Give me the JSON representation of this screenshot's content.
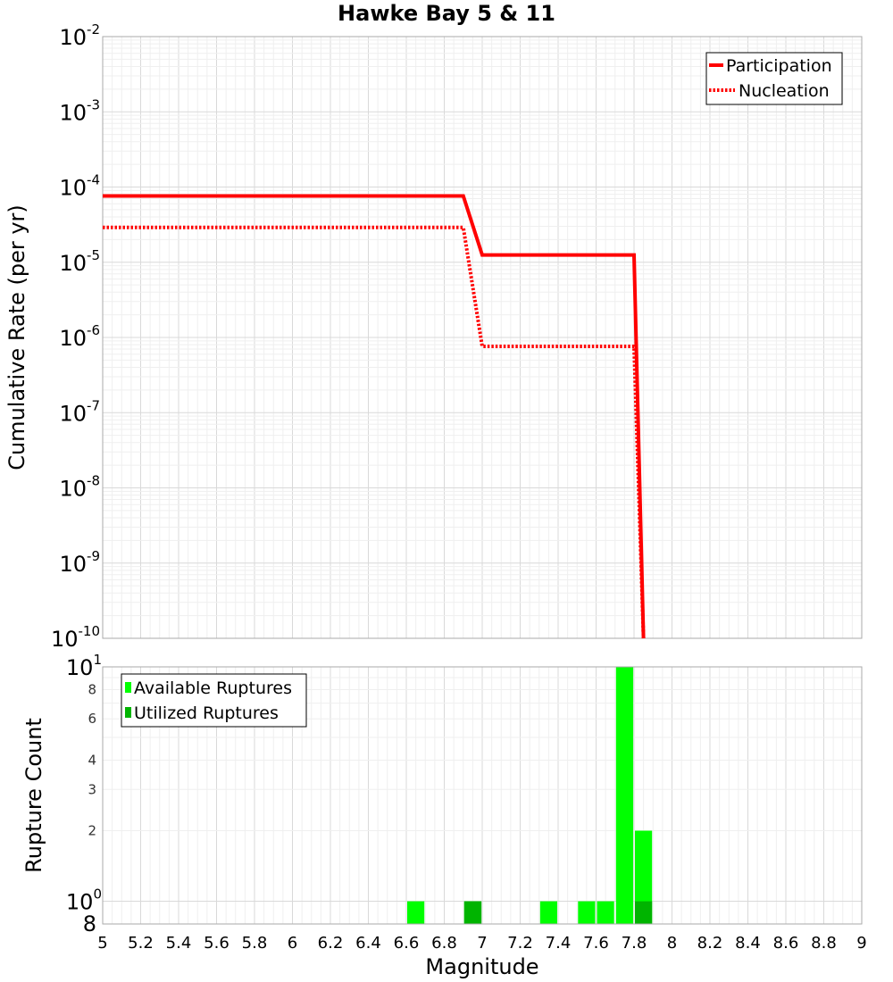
{
  "chart_data": [
    {
      "type": "line",
      "title": "Hawke Bay 5 & 11",
      "xlabel": "",
      "ylabel": "Cumulative Rate (per yr)",
      "xlim": [
        5,
        9
      ],
      "ylim": [
        1e-10,
        0.01
      ],
      "yscale": "log",
      "grid": true,
      "legend_position": "top-right",
      "y_tick_exponents": [
        "-2",
        "-3",
        "-4",
        "-5",
        "-6",
        "-7",
        "-8",
        "-9",
        "-10"
      ],
      "series": [
        {
          "name": "Participation",
          "style": "solid",
          "color": "#ff0000",
          "x": [
            5.0,
            6.9,
            7.0,
            7.8,
            7.85
          ],
          "y": [
            7.6e-05,
            7.6e-05,
            1.25e-05,
            1.25e-05,
            1e-10
          ]
        },
        {
          "name": "Nucleation",
          "style": "dotted",
          "color": "#ff0000",
          "x": [
            5.0,
            6.9,
            7.0,
            7.8,
            7.85
          ],
          "y": [
            2.9e-05,
            2.9e-05,
            7.6e-07,
            7.6e-07,
            1e-10
          ]
        }
      ]
    },
    {
      "type": "bar",
      "title": "",
      "xlabel": "Magnitude",
      "ylabel": "Rupture Count",
      "xlim": [
        5,
        9
      ],
      "ylim": [
        0.8,
        10
      ],
      "yscale": "log",
      "grid": true,
      "legend_position": "top-left",
      "x_ticks": [
        "5",
        "5.2",
        "5.4",
        "5.6",
        "5.8",
        "6",
        "6.2",
        "6.4",
        "6.6",
        "6.8",
        "7",
        "7.2",
        "7.4",
        "7.6",
        "7.8",
        "8",
        "8.2",
        "8.4",
        "8.6",
        "8.8",
        "9"
      ],
      "y_major_ticks": [
        {
          "value": 1,
          "base": "10",
          "exp": "0"
        },
        {
          "value": 10,
          "base": "10",
          "exp": "1"
        }
      ],
      "y_minor_ticks": [
        {
          "value": 2,
          "label": "2"
        },
        {
          "value": 3,
          "label": "3"
        },
        {
          "value": 4,
          "label": "4"
        },
        {
          "value": 6,
          "label": "6"
        },
        {
          "value": 8,
          "label": "8"
        }
      ],
      "y_bottom_label": "8",
      "bin_width": 0.1,
      "series": [
        {
          "name": "Available Ruptures",
          "color": "#00ff00",
          "bins": [
            {
              "x": 6.65,
              "value": 1
            },
            {
              "x": 6.95,
              "value": 1
            },
            {
              "x": 7.35,
              "value": 1
            },
            {
              "x": 7.55,
              "value": 1
            },
            {
              "x": 7.65,
              "value": 1
            },
            {
              "x": 7.75,
              "value": 10
            },
            {
              "x": 7.85,
              "value": 2
            }
          ]
        },
        {
          "name": "Utilized Ruptures",
          "color": "#00b400",
          "bins": [
            {
              "x": 6.95,
              "value": 1
            },
            {
              "x": 7.85,
              "value": 1
            }
          ]
        }
      ]
    }
  ]
}
